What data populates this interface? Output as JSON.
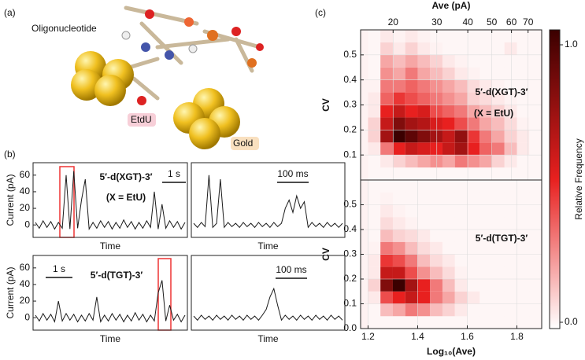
{
  "figure": {
    "panel_a": "(a)",
    "panel_b": "(b)",
    "panel_c": "(c)",
    "oligo": "Oligonucleotide",
    "etdu": "EtdU",
    "gold": "Gold"
  },
  "chart_data": [
    {
      "type": "line",
      "ylabel": "Current (pA)",
      "xlabel": "Time",
      "annotation": "5′-d(XGT)-3′",
      "annotation2": "(X = EtU)",
      "scale_bar": "1 s",
      "color": "#1a1a1a",
      "ylim": [
        -15,
        75
      ],
      "yticks": [
        0,
        20,
        40,
        60
      ],
      "values": [
        3,
        -4,
        5,
        -3,
        4,
        -5,
        3,
        -4,
        60,
        -5,
        65,
        -4,
        30,
        55,
        -5,
        3,
        -4,
        5,
        -3,
        4,
        -5,
        3,
        -4,
        6,
        -3,
        4,
        -5,
        3,
        -4,
        5,
        -3,
        40,
        -5,
        25,
        -4,
        5,
        -3,
        4,
        -5,
        3
      ]
    },
    {
      "type": "line",
      "xlabel": "Time",
      "scale_bar": "100 ms",
      "color": "#1a1a1a",
      "ylim": [
        -15,
        75
      ],
      "values": [
        2,
        -3,
        3,
        -2,
        60,
        -3,
        2,
        55,
        -3,
        3,
        -2,
        2,
        -3,
        3,
        -2,
        2,
        -3,
        3,
        -2,
        2,
        -3,
        3,
        -2,
        2,
        20,
        30,
        15,
        35,
        20,
        28,
        -3,
        3,
        -2,
        2,
        -3,
        3,
        -2,
        2,
        -3,
        2
      ]
    },
    {
      "type": "line",
      "ylabel": "Current (pA)",
      "xlabel": "Time",
      "annotation": "5′-d(TGT)-3′",
      "scale_bar": "1 s",
      "color": "#1a1a1a",
      "ylim": [
        -15,
        75
      ],
      "yticks": [
        0,
        20,
        40,
        60
      ],
      "values": [
        3,
        -4,
        5,
        -3,
        4,
        -5,
        20,
        -4,
        5,
        -3,
        4,
        -5,
        3,
        -4,
        5,
        -3,
        25,
        -5,
        3,
        -4,
        5,
        -3,
        4,
        -5,
        3,
        -4,
        6,
        -3,
        4,
        -5,
        3,
        -4,
        30,
        45,
        -4,
        15,
        -3,
        4,
        -5,
        3
      ]
    },
    {
      "type": "line",
      "xlabel": "Time",
      "scale_bar": "100 ms",
      "color": "#1a1a1a",
      "ylim": [
        -15,
        75
      ],
      "values": [
        2,
        -3,
        3,
        -2,
        2,
        -3,
        3,
        -2,
        2,
        -3,
        3,
        -2,
        2,
        -3,
        3,
        -2,
        2,
        -3,
        3,
        10,
        25,
        35,
        15,
        -3,
        3,
        -2,
        2,
        -3,
        3,
        -2,
        2,
        -3,
        3,
        -2,
        2,
        -3,
        3,
        -2,
        2,
        -3
      ]
    },
    {
      "type": "heatmap",
      "ylabel": "CV",
      "x2label": "Ave (pA)",
      "x2ticks": [
        20,
        30,
        40,
        50,
        60,
        70
      ],
      "annotation": "5′-d(XGT)-3′",
      "annotation2": "(X = EtU)",
      "xlim": [
        1.17,
        1.9
      ],
      "ylim": [
        0,
        0.6
      ],
      "yticks": [
        0.1,
        0.2,
        0.3,
        0.4,
        0.5
      ],
      "x_edges": [
        1.2,
        1.25,
        1.3,
        1.35,
        1.4,
        1.45,
        1.5,
        1.55,
        1.6,
        1.65,
        1.7,
        1.75,
        1.8,
        1.85,
        1.9
      ],
      "y_edges": [
        0,
        0.05,
        0.1,
        0.15,
        0.2,
        0.25,
        0.3,
        0.35,
        0.4,
        0.45,
        0.5,
        0.55,
        0.6
      ],
      "colorbar": {
        "label": "Relative Frequency",
        "ticks": [
          {
            "value": 0,
            "label": "0.0"
          },
          {
            "value": 1,
            "label": "1.0"
          }
        ]
      },
      "z": [
        [
          0.02,
          0.02,
          0.02,
          0.02,
          0.02,
          0.02,
          0.02,
          0.02,
          0.02,
          0.02,
          0.02,
          0.02,
          0.02,
          0.02
        ],
        [
          0.02,
          0.05,
          0.1,
          0.15,
          0.2,
          0.25,
          0.2,
          0.3,
          0.25,
          0.2,
          0.1,
          0.05,
          0.02,
          0.02
        ],
        [
          0.05,
          0.3,
          0.5,
          0.6,
          0.55,
          0.5,
          0.6,
          0.7,
          0.5,
          0.35,
          0.3,
          0.15,
          0.05,
          0.02
        ],
        [
          0.1,
          0.7,
          1.0,
          0.9,
          0.8,
          0.7,
          0.6,
          0.75,
          0.45,
          0.3,
          0.2,
          0.1,
          0.05,
          0.02
        ],
        [
          0.1,
          0.6,
          0.8,
          0.7,
          0.65,
          0.55,
          0.5,
          0.4,
          0.3,
          0.2,
          0.15,
          0.08,
          0.03,
          0.02
        ],
        [
          0.05,
          0.5,
          0.6,
          0.5,
          0.55,
          0.4,
          0.35,
          0.3,
          0.2,
          0.15,
          0.1,
          0.05,
          0.02,
          0.02
        ],
        [
          0.05,
          0.35,
          0.45,
          0.4,
          0.35,
          0.3,
          0.25,
          0.2,
          0.1,
          0.08,
          0.05,
          0.03,
          0.02,
          0.02
        ],
        [
          0.03,
          0.3,
          0.3,
          0.35,
          0.3,
          0.25,
          0.2,
          0.15,
          0.08,
          0.05,
          0.03,
          0.02,
          0.02,
          0.02
        ],
        [
          0.02,
          0.25,
          0.2,
          0.3,
          0.2,
          0.15,
          0.1,
          0.05,
          0.03,
          0.02,
          0.02,
          0.02,
          0.02,
          0.02
        ],
        [
          0.02,
          0.2,
          0.15,
          0.2,
          0.15,
          0.1,
          0.05,
          0.03,
          0.02,
          0.02,
          0.02,
          0.02,
          0.02,
          0.02
        ],
        [
          0.02,
          0.1,
          0.05,
          0.1,
          0.05,
          0.03,
          0.02,
          0.02,
          0.02,
          0.02,
          0.02,
          0.05,
          0.02,
          0.02
        ],
        [
          0.02,
          0.05,
          0.03,
          0.05,
          0.03,
          0.02,
          0.02,
          0.02,
          0.02,
          0.02,
          0.02,
          0.02,
          0.02,
          0.02
        ]
      ]
    },
    {
      "type": "heatmap",
      "ylabel": "CV",
      "xlabel": "Log₁₀(Ave)",
      "annotation": "5′-d(TGT)-3′",
      "xlim": [
        1.17,
        1.9
      ],
      "ylim": [
        0,
        0.6
      ],
      "xticks": [
        1.2,
        1.4,
        1.6,
        1.8
      ],
      "yticks": [
        {
          "value": 0,
          "label": "0.0"
        },
        0.1,
        0.2,
        0.3,
        0.4,
        0.5
      ],
      "x_edges": [
        1.2,
        1.25,
        1.3,
        1.35,
        1.4,
        1.45,
        1.5,
        1.55,
        1.6,
        1.65,
        1.7,
        1.75,
        1.8,
        1.85,
        1.9
      ],
      "y_edges": [
        0,
        0.05,
        0.1,
        0.15,
        0.2,
        0.25,
        0.3,
        0.35,
        0.4,
        0.45,
        0.5,
        0.55,
        0.6
      ],
      "z": [
        [
          0.02,
          0.02,
          0.02,
          0.02,
          0.02,
          0.02,
          0.02,
          0.02,
          0.02,
          0.02,
          0.02,
          0.02,
          0.02,
          0.02
        ],
        [
          0.02,
          0.15,
          0.2,
          0.3,
          0.25,
          0.15,
          0.1,
          0.05,
          0.02,
          0.02,
          0.02,
          0.02,
          0.02,
          0.02
        ],
        [
          0.05,
          0.4,
          0.5,
          0.6,
          0.5,
          0.3,
          0.2,
          0.1,
          0.05,
          0.02,
          0.02,
          0.02,
          0.02,
          0.02
        ],
        [
          0.1,
          0.8,
          1.0,
          0.7,
          0.5,
          0.3,
          0.15,
          0.05,
          0.02,
          0.02,
          0.02,
          0.02,
          0.02,
          0.02
        ],
        [
          0.05,
          0.6,
          0.6,
          0.4,
          0.25,
          0.15,
          0.08,
          0.03,
          0.02,
          0.02,
          0.02,
          0.02,
          0.02,
          0.02
        ],
        [
          0.05,
          0.45,
          0.4,
          0.3,
          0.15,
          0.08,
          0.05,
          0.02,
          0.02,
          0.02,
          0.02,
          0.02,
          0.02,
          0.02
        ],
        [
          0.03,
          0.3,
          0.25,
          0.15,
          0.08,
          0.05,
          0.02,
          0.02,
          0.02,
          0.02,
          0.02,
          0.02,
          0.02,
          0.02
        ],
        [
          0.02,
          0.15,
          0.1,
          0.08,
          0.05,
          0.02,
          0.02,
          0.02,
          0.02,
          0.02,
          0.02,
          0.02,
          0.02,
          0.02
        ],
        [
          0.02,
          0.08,
          0.05,
          0.03,
          0.02,
          0.02,
          0.02,
          0.02,
          0.02,
          0.02,
          0.02,
          0.02,
          0.02,
          0.02
        ],
        [
          0.02,
          0.05,
          0.03,
          0.02,
          0.02,
          0.02,
          0.02,
          0.02,
          0.02,
          0.02,
          0.02,
          0.02,
          0.02,
          0.02
        ],
        [
          0.02,
          0.03,
          0.02,
          0.02,
          0.02,
          0.02,
          0.02,
          0.02,
          0.02,
          0.02,
          0.02,
          0.02,
          0.02,
          0.02
        ],
        [
          0.02,
          0.02,
          0.02,
          0.02,
          0.02,
          0.02,
          0.02,
          0.02,
          0.02,
          0.02,
          0.02,
          0.02,
          0.02,
          0.02
        ]
      ]
    }
  ]
}
